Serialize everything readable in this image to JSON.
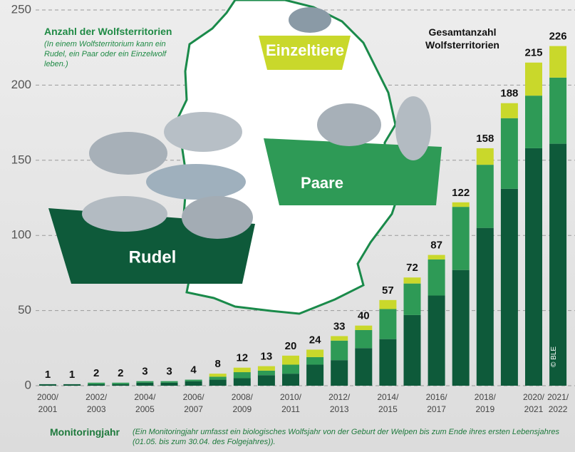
{
  "chart_data": {
    "type": "bar",
    "stacked": true,
    "title": "Anzahl der Wolfsterritorien",
    "subtitle": "(In einem Wolfsterritorium kann ein Rudel, ein Paar oder ein Einzelwolf leben.)",
    "total_label": "Gesamtanzahl Wolfsterritorien",
    "x_label": "Monitoringjahr",
    "x_note": "(Ein Monitoringjahr umfasst ein biologisches Wolfsjahr von der Geburt der Welpen bis zum Ende ihres ersten Lebensjahres (01.05. bis zum 30.04. des Folgejahres)).",
    "credit": "© BLE",
    "categories": [
      "2000/2001",
      null,
      "2002/2003",
      null,
      "2004/2005",
      null,
      "2006/2007",
      null,
      "2008/2009",
      null,
      "2010/2011",
      null,
      "2012/2013",
      null,
      "2014/2015",
      null,
      "2016/2017",
      null,
      "2018/2019",
      null,
      "2020/2021",
      "2021/2022"
    ],
    "series": [
      {
        "name": "Rudel",
        "color": "#0e5a3a",
        "values": [
          1,
          1,
          1,
          1,
          2,
          2,
          3,
          4,
          5,
          7,
          8,
          14,
          17,
          25,
          31,
          47,
          60,
          77,
          105,
          131,
          158,
          161
        ]
      },
      {
        "name": "Paare",
        "color": "#2e9a56",
        "values": [
          0,
          0,
          1,
          1,
          1,
          1,
          1,
          2,
          4,
          3,
          6,
          5,
          13,
          12,
          20,
          21,
          24,
          42,
          42,
          47,
          35,
          44
        ]
      },
      {
        "name": "Einzeltiere",
        "color": "#c9d82b",
        "values": [
          0,
          0,
          0,
          0,
          0,
          0,
          0,
          2,
          3,
          3,
          6,
          5,
          3,
          3,
          6,
          4,
          3,
          3,
          11,
          10,
          22,
          21
        ]
      }
    ],
    "totals": [
      1,
      1,
      2,
      2,
      3,
      3,
      4,
      8,
      12,
      13,
      20,
      24,
      33,
      40,
      57,
      72,
      87,
      122,
      158,
      188,
      215,
      226
    ],
    "ylim": [
      0,
      250
    ],
    "yticks": [
      0,
      50,
      100,
      150,
      200,
      250
    ],
    "grid": true
  }
}
